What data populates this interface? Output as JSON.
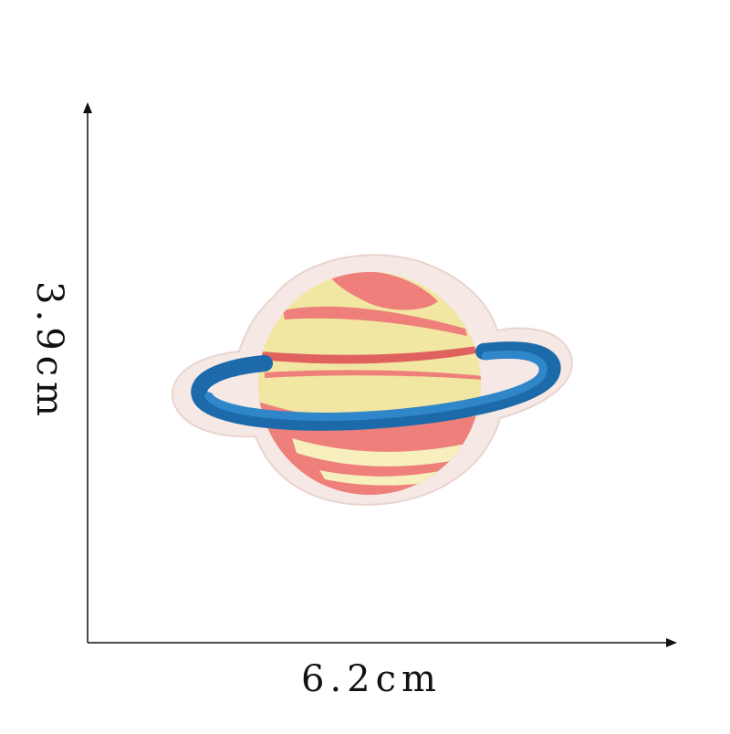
{
  "dimensions": {
    "width_label": "6.2cm",
    "height_label": "3.9cm"
  },
  "patch": {
    "subject": "planet-with-ring-embroidered-patch",
    "colors": {
      "felt_backing": "#f6e8e4",
      "felt_edge": "#e9d4ce",
      "planet_yellow": "#f1e6a2",
      "planet_yellow_light": "#f7efbd",
      "planet_coral": "#ee7f7a",
      "planet_coral_dark": "#e0625f",
      "ring_blue": "#2f86c8",
      "ring_blue_dark": "#1d6aaa"
    }
  },
  "axes": {
    "line_color": "#111111"
  }
}
